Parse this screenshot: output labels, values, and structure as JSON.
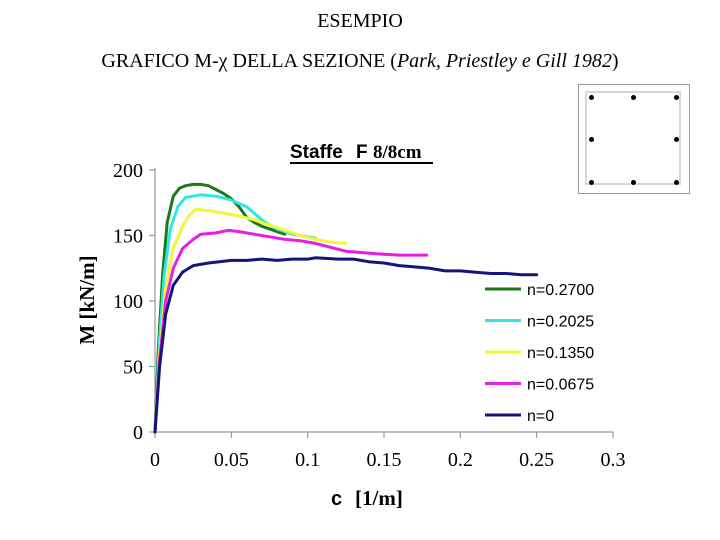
{
  "page": {
    "heading_line1": "ESEMPIO",
    "heading_line2_prefix": "GRAFICO M-χ DELLA SEZIONE (",
    "heading_line2_italic": "Park, Priestley e Gill 1982",
    "heading_line2_suffix": ")"
  },
  "section_icon": {
    "name": "cross-section-icon",
    "rebar_count": 8
  },
  "chart_data": {
    "type": "line",
    "title_parts": [
      "Staffe",
      "F",
      "8/8cm"
    ],
    "xlabel_symbol": "c",
    "xlabel_unit": "[1/m]",
    "ylabel": "M [kN/m]",
    "xlim": [
      0,
      0.3
    ],
    "ylim": [
      0,
      200
    ],
    "x_ticks": [
      0,
      0.05,
      0.1,
      0.15,
      0.2,
      0.25,
      0.3
    ],
    "x_tick_labels": [
      "0",
      "0.05",
      "0.1",
      "0.15",
      "0.2",
      "0.25",
      "0.3"
    ],
    "y_ticks": [
      0,
      50,
      100,
      150,
      200
    ],
    "y_tick_labels": [
      "0",
      "50",
      "100",
      "150",
      "200"
    ],
    "grid": false,
    "legend_position": "right",
    "series": [
      {
        "name": "n=0.2700",
        "color": "#1a7a1a",
        "points": [
          [
            0,
            0
          ],
          [
            0.002,
            60
          ],
          [
            0.005,
            120
          ],
          [
            0.008,
            160
          ],
          [
            0.012,
            180
          ],
          [
            0.016,
            186
          ],
          [
            0.02,
            188
          ],
          [
            0.025,
            189
          ],
          [
            0.03,
            189
          ],
          [
            0.035,
            188
          ],
          [
            0.04,
            185
          ],
          [
            0.045,
            182
          ],
          [
            0.05,
            178
          ],
          [
            0.055,
            172
          ],
          [
            0.06,
            164
          ],
          [
            0.065,
            160
          ],
          [
            0.07,
            157
          ],
          [
            0.075,
            155
          ],
          [
            0.08,
            153
          ],
          [
            0.085,
            151
          ]
        ]
      },
      {
        "name": "n=0.2025",
        "color": "#33e5e5",
        "points": [
          [
            0,
            0
          ],
          [
            0.003,
            70
          ],
          [
            0.006,
            120
          ],
          [
            0.01,
            155
          ],
          [
            0.015,
            172
          ],
          [
            0.02,
            179
          ],
          [
            0.03,
            181
          ],
          [
            0.04,
            180
          ],
          [
            0.05,
            177
          ],
          [
            0.06,
            172
          ],
          [
            0.065,
            167
          ],
          [
            0.07,
            162
          ],
          [
            0.075,
            158
          ],
          [
            0.08,
            155
          ],
          [
            0.09,
            151
          ],
          [
            0.1,
            149
          ],
          [
            0.105,
            148
          ]
        ]
      },
      {
        "name": "n=0.1350",
        "color": "#f5f53c",
        "points": [
          [
            0,
            0
          ],
          [
            0.003,
            60
          ],
          [
            0.007,
            110
          ],
          [
            0.012,
            140
          ],
          [
            0.018,
            157
          ],
          [
            0.022,
            165
          ],
          [
            0.027,
            170
          ],
          [
            0.035,
            169
          ],
          [
            0.045,
            167
          ],
          [
            0.055,
            165
          ],
          [
            0.065,
            162
          ],
          [
            0.075,
            158
          ],
          [
            0.085,
            154
          ],
          [
            0.095,
            150
          ],
          [
            0.105,
            147
          ],
          [
            0.115,
            145
          ],
          [
            0.125,
            144
          ]
        ]
      },
      {
        "name": "n=0.0675",
        "color": "#e61ee6",
        "points": [
          [
            0,
            0
          ],
          [
            0.003,
            55
          ],
          [
            0.007,
            100
          ],
          [
            0.012,
            125
          ],
          [
            0.018,
            140
          ],
          [
            0.025,
            147
          ],
          [
            0.03,
            151
          ],
          [
            0.04,
            152
          ],
          [
            0.048,
            154
          ],
          [
            0.055,
            153
          ],
          [
            0.065,
            151
          ],
          [
            0.075,
            149
          ],
          [
            0.085,
            147
          ],
          [
            0.095,
            146
          ],
          [
            0.105,
            144
          ],
          [
            0.115,
            141
          ],
          [
            0.125,
            138
          ],
          [
            0.135,
            137
          ],
          [
            0.145,
            136
          ],
          [
            0.16,
            135
          ],
          [
            0.178,
            135
          ]
        ]
      },
      {
        "name": "n=0",
        "color": "#14147a",
        "points": [
          [
            0,
            0
          ],
          [
            0.003,
            50
          ],
          [
            0.007,
            90
          ],
          [
            0.012,
            112
          ],
          [
            0.018,
            122
          ],
          [
            0.025,
            127
          ],
          [
            0.035,
            129
          ],
          [
            0.05,
            131
          ],
          [
            0.06,
            131
          ],
          [
            0.07,
            132
          ],
          [
            0.08,
            131
          ],
          [
            0.09,
            132
          ],
          [
            0.1,
            132
          ],
          [
            0.105,
            133
          ],
          [
            0.12,
            132
          ],
          [
            0.13,
            132
          ],
          [
            0.14,
            130
          ],
          [
            0.15,
            129
          ],
          [
            0.16,
            127
          ],
          [
            0.17,
            126
          ],
          [
            0.18,
            125
          ],
          [
            0.19,
            123
          ],
          [
            0.2,
            123
          ],
          [
            0.21,
            122
          ],
          [
            0.22,
            121
          ],
          [
            0.23,
            121
          ],
          [
            0.24,
            120
          ],
          [
            0.25,
            120
          ]
        ]
      }
    ]
  }
}
